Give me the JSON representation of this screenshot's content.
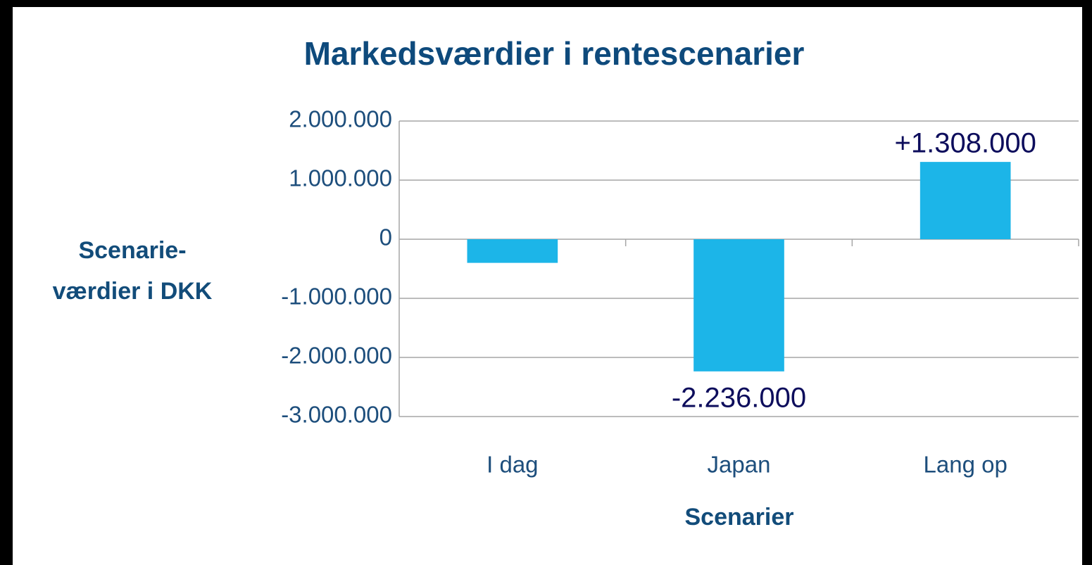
{
  "chart_data": {
    "type": "bar",
    "title": "Markedsværdier i rentescenarier",
    "xlabel": "Scenarier",
    "ylabel": [
      "Scenarie-",
      "værdier i DKK"
    ],
    "categories": [
      "I dag",
      "Japan",
      "Lang op"
    ],
    "values": [
      -400000,
      -2236000,
      1308000
    ],
    "value_labels": [
      null,
      "-2.236.000",
      "+1.308.000"
    ],
    "color": "#1cb5e8",
    "ylim": [
      -3000000,
      2000000
    ],
    "yticks": [
      {
        "value": -3000000,
        "label": "-3.000.000"
      },
      {
        "value": -2000000,
        "label": "-2.000.000"
      },
      {
        "value": -1000000,
        "label": "-1.000.000"
      },
      0,
      {
        "value": 1000000,
        "label": "1.000.000"
      },
      {
        "value": 2000000,
        "label": "2.000.000"
      }
    ],
    "grid": true
  }
}
